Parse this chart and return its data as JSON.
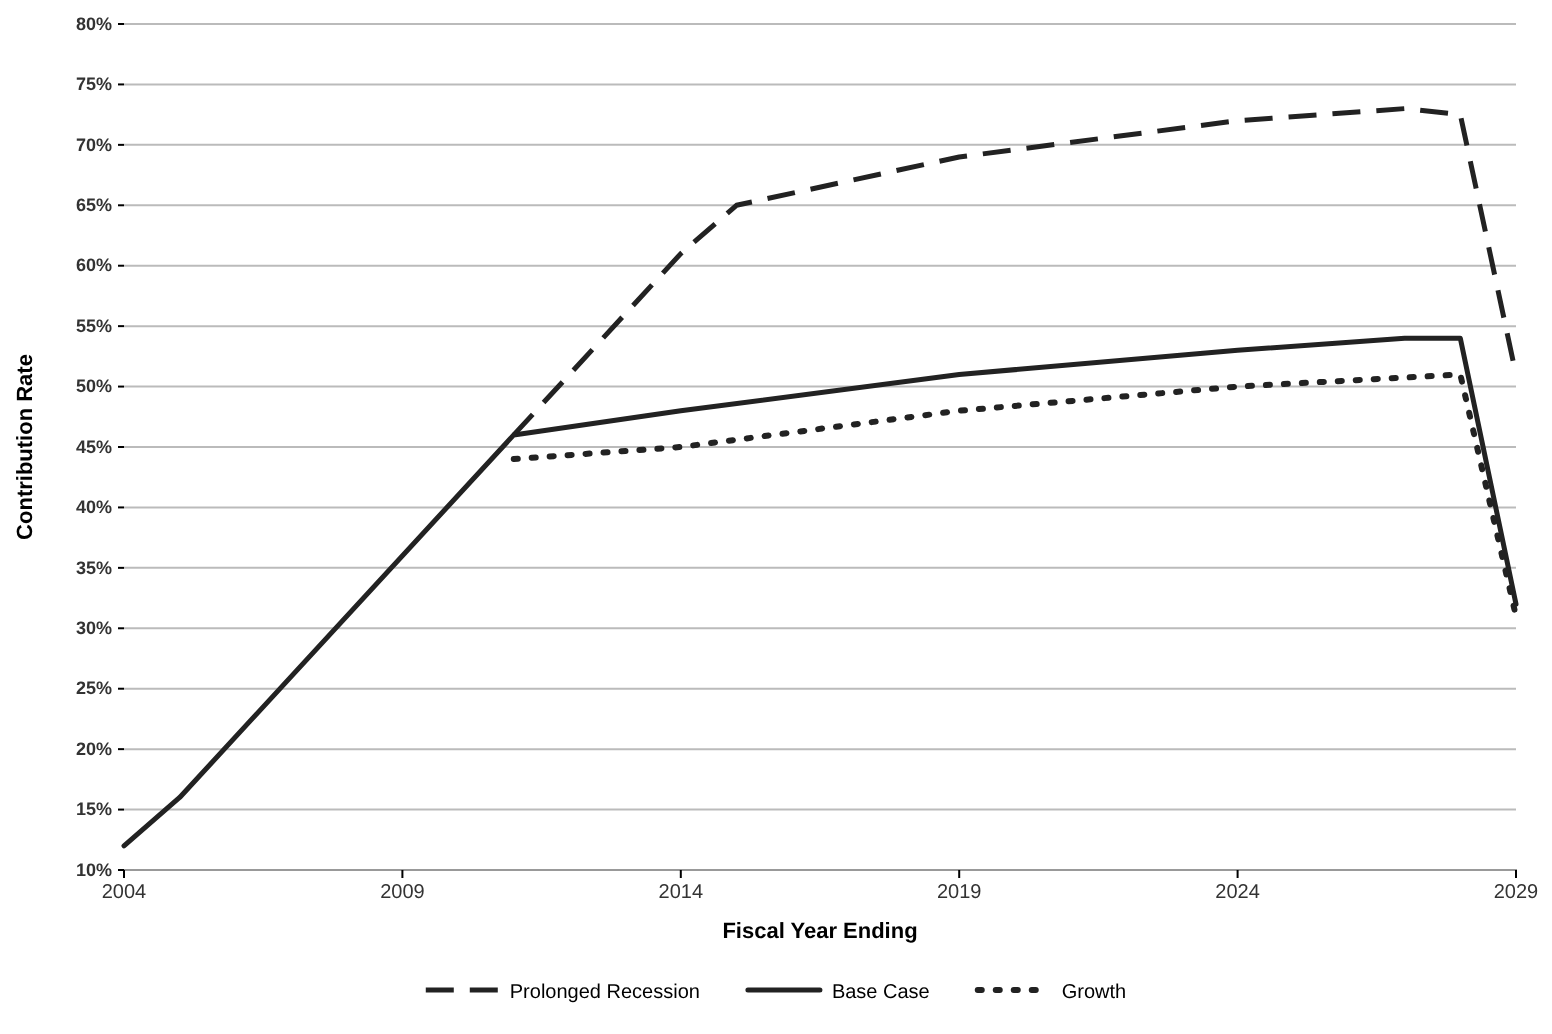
{
  "chart_data": {
    "type": "line",
    "xlabel": "Fiscal Year Ending",
    "ylabel": "Contribution Rate",
    "xlim": [
      2004,
      2029
    ],
    "xticks": [
      2004,
      2009,
      2014,
      2019,
      2024,
      2029
    ],
    "ylim": [
      10,
      80
    ],
    "yticks": [
      {
        "value": 10,
        "label": "10%"
      },
      {
        "value": 15,
        "label": "15%"
      },
      {
        "value": 20,
        "label": "20%"
      },
      {
        "value": 25,
        "label": "25%"
      },
      {
        "value": 30,
        "label": "30%"
      },
      {
        "value": 35,
        "label": "35%"
      },
      {
        "value": 40,
        "label": "40%"
      },
      {
        "value": 45,
        "label": "45%"
      },
      {
        "value": 50,
        "label": "50%"
      },
      {
        "value": 55,
        "label": "55%"
      },
      {
        "value": 60,
        "label": "60%"
      },
      {
        "value": 65,
        "label": "65%"
      },
      {
        "value": 70,
        "label": "70%"
      },
      {
        "value": 75,
        "label": "75%"
      },
      {
        "value": 80,
        "label": "80%"
      }
    ],
    "grid": "y",
    "legend": "bottom",
    "marker": "none",
    "series": [
      {
        "name": "Prolonged Recession",
        "color": "#222222",
        "line_style": "dashed",
        "x": [
          2011,
          2014,
          2015,
          2019,
          2024,
          2027,
          2028,
          2029
        ],
        "values": [
          46,
          61,
          65,
          69,
          72,
          73,
          72.5,
          51
        ]
      },
      {
        "name": "Base Case",
        "color": "#222222",
        "line_style": "solid",
        "x": [
          2004,
          2005,
          2011,
          2014,
          2019,
          2024,
          2027,
          2028,
          2029
        ],
        "values": [
          12,
          16,
          46,
          48,
          51,
          53,
          54,
          54,
          32
        ]
      },
      {
        "name": "Growth",
        "color": "#222222",
        "line_style": "dotted",
        "x": [
          2011,
          2014,
          2019,
          2024,
          2028,
          2029
        ],
        "values": [
          44,
          45,
          48,
          50,
          51,
          31
        ]
      }
    ]
  }
}
